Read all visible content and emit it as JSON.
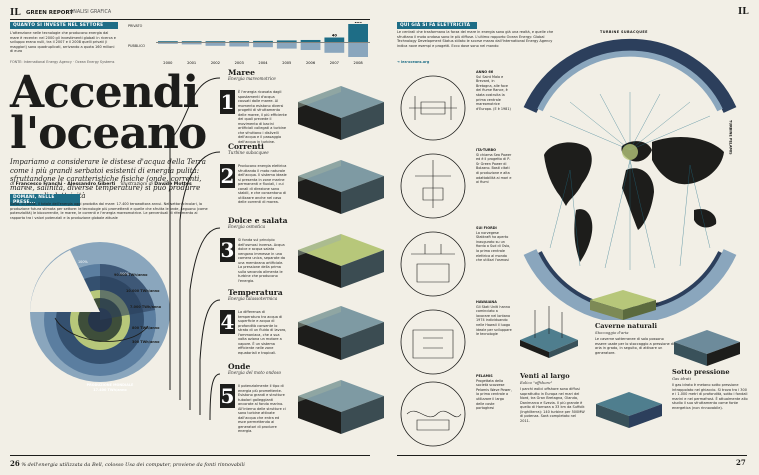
{
  "header": {
    "logo_left": "IL",
    "section": "GREEN REPORT",
    "subsection": "ANALISI GRAFICA",
    "logo_right": "IL"
  },
  "investments": {
    "heading": "QUANTO SI INVESTE NEL SETTORE",
    "body": "L'attenzione nelle tecnologie che producono energia dal mare è recente: nel 2000 gli investimenti globali in ricerca e sviluppo erano nulli, tra il 2007 e il 2008 quelli privati (i maggiori) sono quadruplicati, arrivando a quota 160 milioni di euro",
    "legend_private": "PRIVATO",
    "legend_public": "PUBBLICO",
    "source": "FONTE: International Energy Agency · Ocean Energy Systems",
    "chart_data": {
      "type": "bar",
      "categories": [
        "2000",
        "2001",
        "2002",
        "2003",
        "2004",
        "2005",
        "2006",
        "2007",
        "2008"
      ],
      "series": [
        {
          "name": "PRIVATO",
          "values": [
            0,
            3,
            6,
            8,
            10,
            14,
            18,
            40,
            160
          ]
        },
        {
          "name": "PUBBLICO",
          "values": [
            0,
            2,
            4,
            5,
            6,
            8,
            10,
            14,
            20
          ]
        }
      ],
      "peak_labels": {
        "2007": "40",
        "2008": "160"
      }
    }
  },
  "title": {
    "line1": "Accendi",
    "line2": "l'oceano",
    "dek": "Impariamo a considerare le distese d'acqua della Terra come i più grandi serbatoi esistenti di energia pulita: sfruttandone le caratteristiche fisiche (onde, correnti, maree, salinità, diverse temperature) si può produrre un mare di elettricità",
    "byline_prefix": "di",
    "authors": "Francesco Franchi · Alessandro Giberti",
    "illustrations_prefix": "illustrazioni di",
    "illustrator": "Davide Mottes"
  },
  "potential": {
    "heading": "DOMANI, NELLE PRESE...",
    "body": "Sotto, in verde, il totale dell'energia oggi prodotta dal mare: 17.400 terawattora annui. Nei settori circolari, la produzione futura stimata per settore: le tecnologie più promettenti e quelle che sfrutta le onde, seguono (come potenzialità) le biocorrentie, le maree, le correnti e l'energia mareomotrice. Le percentuali di riferimento al rapporto tra i valori potenziali e la produzione globale attuale",
    "labels": [
      "90.000 TWh/anno",
      "10.000 TWh/anno",
      "7.000 TWh/anno",
      "800 TWh/anno",
      "300 TWh/anno"
    ],
    "pct_inner": "100%",
    "pct_outer": "500%",
    "total_label": "PRODUZIONE MONDIALE",
    "total_value": "17.400 TWh/anno"
  },
  "sections": [
    {
      "num": "1",
      "title": "Maree",
      "sub": "Energia mareomotrice",
      "body": "È l'energia ricavata dagli spostamenti d'acqua causati dalle maree. Al momento esistono diversi progetti di sfruttamento delle maree, il più efficiente dei quali prevede il movimento di bacini artificiali collegati a turbine che sfruttano i dislivelli dell'acqua e il passaggio dell'acqua in turbine."
    },
    {
      "num": "2",
      "title": "Correnti",
      "sub": "Turbine subacquee",
      "body": "Producono energia elettrica sfruttando il moto naturale dell'acqua. Il sistema ideale si presenta in zone marine permanenti e fluviali, i cui canali di direzione sono stabili, e che consentono di utilizzare anche nel caso delle correnti di marea."
    },
    {
      "num": "3",
      "title": "Dolce e salata",
      "sub": "Energia osmotica",
      "body": "Si fonda sul principio dell'osmosi inversa. Acqua dolce e acqua salata vengono immesse in una camera unica, separate da una membrana artificiale. La pressione della prima sulla seconda alimenta le turbine che producono l'energia."
    },
    {
      "num": "4",
      "title": "Temperatura",
      "sub": "Energia talassotermica",
      "body": "La differenza di temperatura tra acqua di superficie e acqua di profondità consente lo strato di un fluido di lavoro, l'ammoniaca, che a sua volta aziona un motore a vapore. È un sistema efficiente nelle zone equatoriali e tropicali."
    },
    {
      "num": "5",
      "title": "Onde",
      "sub": "Energia del moto ondoso",
      "body": "Il potenzialmente il tipo di energia più promettente. Esistono grandi e strutture tubolari galleggianti ancorate al fondo marino. All'interno delle strutture ci sono turbine attivate dall'acqua che entra ed esce permettendo ai generatori di produrre energia."
    }
  ],
  "places": {
    "heading": "QUI GIÀ SI FA ELETTRICITÀ",
    "body": "Le centrali che trasformano la forza del mare in energia sono già una realtà, e quelle che sfruttano il moto ondoso sono le più diffuse. L'ultimo rapporto Ocean Energy: Global Technology Development Status stilato le scorse marzo dall'International Energy Agency indica nove esempi e progetti. Ecco dove sono nel mondo",
    "link": "➔ iea-oceans.org",
    "ring_top": "TURBINE SUBACQUEE",
    "ring_bottom": "ENERGIA DEL MOTO ONDOSO",
    "ring_side": "TURBINE PELAMIS",
    "blocks": [
      {
        "title": "ANNO 66",
        "body": "Sul Saint Malo e Brevard, in Bretagna, alle foce del fiume Rance, è stata costruita la prima centrale mareomotrice d'Europa. (E è 1981)"
      },
      {
        "title": "ITA-TURBO",
        "body": "Si chiama Sea Power ed è il progetto di P-Sr Green Power di Bolzano. Basti citati di produzione e alta adattabilità ai mari e ai fiumi"
      },
      {
        "title": "SUI FIORDI",
        "body": "La norvegese Statkraft ha aperto inaugurato su un fiordo a Sud di Oslo, la prima centrale elettrica al mondo che utilizzi l'osmosi"
      },
      {
        "title": "HAWAIANA",
        "body": "Gli Stati Uniti hanno cominciato a lavorare nel lontano 1974 individuando nelle Hawaii il luogo ideale per sviluppare le tecnologie"
      },
      {
        "title": "PELAMIS",
        "body": "Progettata della società scozzese Pelamis Wave Power, la prima centrale a utilizzare il largo delle coste portoghesi"
      }
    ]
  },
  "misc": [
    {
      "title": "Caverne naturali",
      "sub": "Stoccaggio d'aria",
      "body": "Le caverne sotterranee di solo possono essere usate per lo stoccaggio a pressione di aria in grado, in seguito, di attivare un generatore."
    },
    {
      "title": "Venti al largo",
      "sub": "Eolico \"offshore\"",
      "body": "I parchi eolici offshore sono diffusi soprattutto in Europa nel mari del Nord, tra Gran Bretagna, Olanda, Danimarca e Svezia. Il più grande è quello di Hornsea a 33 km da Suffolk (Inghilterra): 140 turbine per 500MW di potenza. Sarà completato nel 2011."
    },
    {
      "title": "Sotto pressione",
      "sub": "Gas idrati",
      "body": "Il gas idrato è metano sotto pressione intrappolato nel ghiaccio. Si trova tra i 300 e i 1.000 metri di profondità, sotto i fondali marini e nel permafrost. È attualmente allo studio il suo sfruttamento come fonte energetica (non rinnovabile)."
    }
  ],
  "footer": {
    "left_num": "26",
    "left_text": "% dell'energia utilizzata da Bell, colosso Usa dei computer, proviene da fonti rinnovabili",
    "right_num": "27"
  },
  "colors": {
    "teal": "#1e6d86",
    "navy": "#2c3f5c",
    "green": "#b7c77a",
    "paper": "#f2efe6",
    "ring": "#8aa6bd"
  }
}
